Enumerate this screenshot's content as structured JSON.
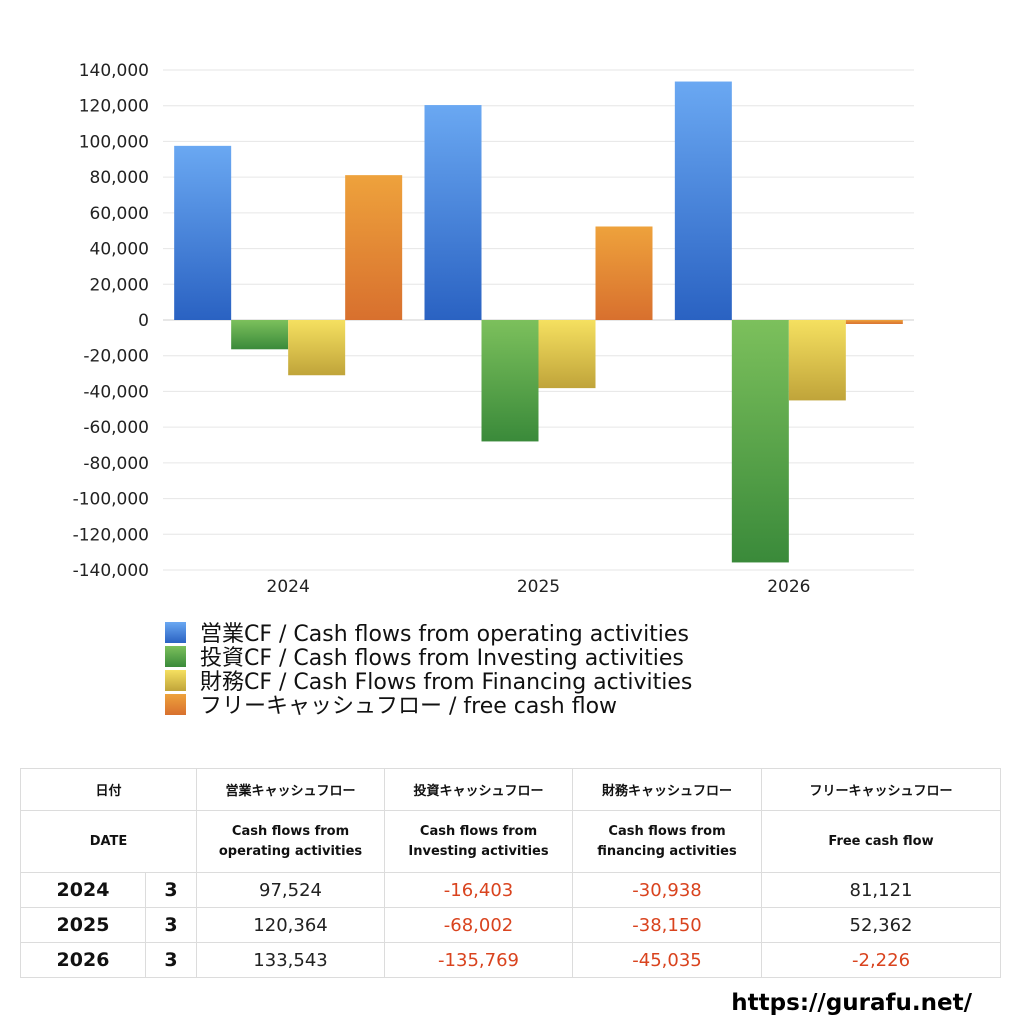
{
  "chart_data": {
    "type": "bar",
    "categories": [
      "2024",
      "2025",
      "2026"
    ],
    "ylim": [
      -140000,
      140000
    ],
    "yticks": [
      140000,
      120000,
      100000,
      80000,
      60000,
      40000,
      20000,
      0,
      -20000,
      -40000,
      -60000,
      -80000,
      -100000,
      -120000,
      -140000
    ],
    "ytick_labels": [
      "140,000",
      "120,000",
      "100,000",
      "80,000",
      "60,000",
      "40,000",
      "20,000",
      "0",
      "-20,000",
      "-40,000",
      "-60,000",
      "-80,000",
      "-100,000",
      "-120,000",
      "-140,000"
    ],
    "grid": true,
    "legend_position": "bottom",
    "series": [
      {
        "name": "営業CF / Cash flows from operating activities",
        "values": [
          97524,
          120364,
          133543
        ],
        "color_top": "#6aa8f2",
        "color_bottom": "#2a62c2"
      },
      {
        "name": "投資CF / Cash flows from Investing activities",
        "values": [
          -16403,
          -68002,
          -135769
        ],
        "color_top": "#7cc05c",
        "color_bottom": "#3a8a3a"
      },
      {
        "name": "財務CF / Cash Flows from Financing activities",
        "values": [
          -30938,
          -38150,
          -45035
        ],
        "color_top": "#f5e060",
        "color_bottom": "#c0a43a"
      },
      {
        "name": "フリーキャッシュフロー / free cash flow",
        "values": [
          81121,
          52362,
          -2226
        ],
        "color_top": "#eea23c",
        "color_bottom": "#d8702e"
      }
    ]
  },
  "table": {
    "header": {
      "date": "日付",
      "operating": "営業キャッシュフロー",
      "investing": "投資キャッシュフロー",
      "financing": "財務キャッシュフロー",
      "free": "フリーキャッシュフロー"
    },
    "subheader": {
      "date": "DATE",
      "operating_1": "Cash flows from",
      "operating_2": "operating activities",
      "investing_1": "Cash flows from",
      "investing_2": "Investing activities",
      "financing_1": "Cash flows from",
      "financing_2": "financing activities",
      "free": "Free cash flow"
    },
    "rows": [
      {
        "year": "2024",
        "month": "3",
        "operating": "97,524",
        "investing": "-16,403",
        "financing": "-30,938",
        "free": "81,121"
      },
      {
        "year": "2025",
        "month": "3",
        "operating": "120,364",
        "investing": "-68,002",
        "financing": "-38,150",
        "free": "52,362"
      },
      {
        "year": "2026",
        "month": "3",
        "operating": "133,543",
        "investing": "-135,769",
        "financing": "-45,035",
        "free": "-2,226"
      }
    ],
    "negative_color": "#d9431e"
  },
  "footer": {
    "url": "https://gurafu.net/"
  }
}
